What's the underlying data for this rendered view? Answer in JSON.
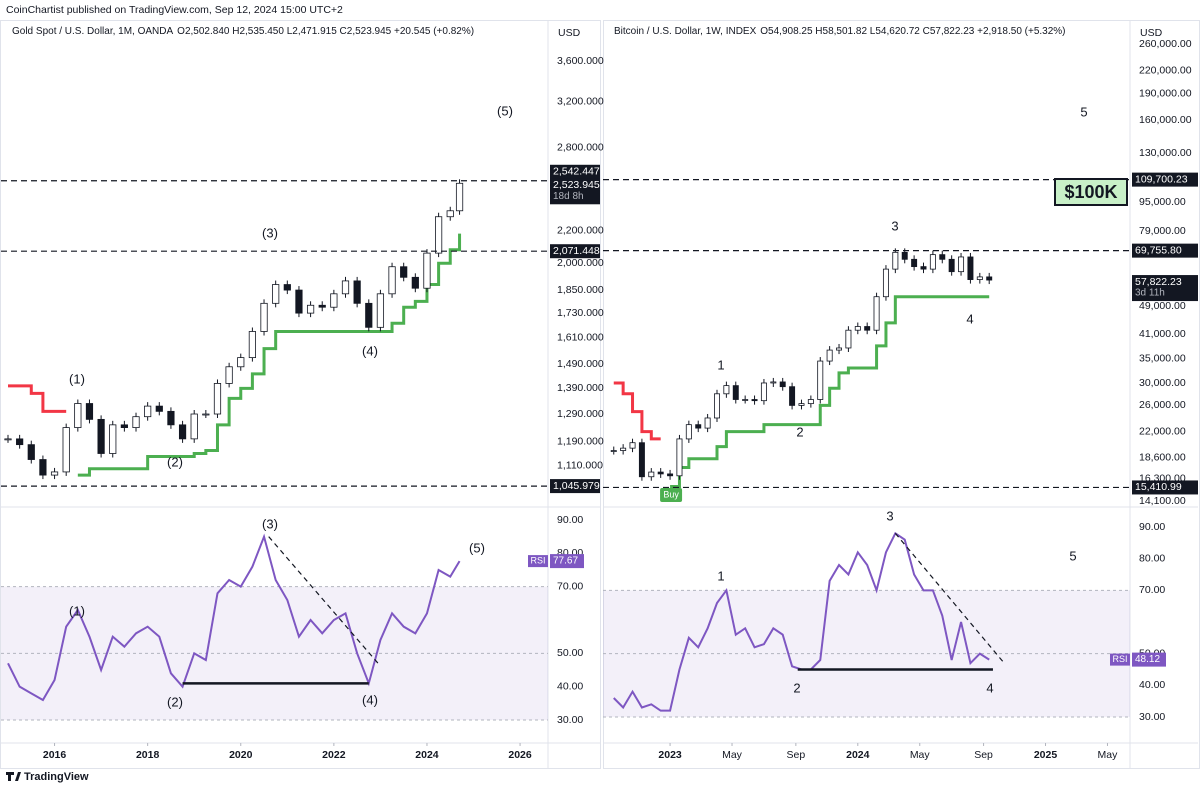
{
  "header": {
    "text": "CoinChartist published on TradingView.com, Sep 12, 2024 15:00 UTC+2"
  },
  "footer": {
    "brand": "TradingView"
  },
  "chart_data": [
    {
      "type": "candlestick",
      "title": "Gold Spot / U.S. Dollar, 1M, OANDA",
      "ohlc": "O2,502.840 H2,535.450 L2,471.915 C2,523.945 +20.545 (+0.82%)",
      "unit": "USD",
      "log": true,
      "color": "#131722",
      "x": [
        2015.0,
        2015.25,
        2015.5,
        2015.75,
        2016.0,
        2016.25,
        2016.5,
        2016.75,
        2017.0,
        2017.25,
        2017.5,
        2017.75,
        2018.0,
        2018.25,
        2018.5,
        2018.75,
        2019.0,
        2019.25,
        2019.5,
        2019.75,
        2020.0,
        2020.25,
        2020.5,
        2020.75,
        2021.0,
        2021.25,
        2021.5,
        2021.75,
        2022.0,
        2022.25,
        2022.5,
        2022.75,
        2023.0,
        2023.25,
        2023.5,
        2023.75,
        2024.0,
        2024.25,
        2024.5,
        2024.7
      ],
      "values": [
        1200,
        1180,
        1130,
        1080,
        1090,
        1240,
        1330,
        1270,
        1150,
        1250,
        1240,
        1280,
        1320,
        1300,
        1250,
        1200,
        1290,
        1290,
        1410,
        1480,
        1520,
        1640,
        1780,
        1880,
        1850,
        1730,
        1770,
        1760,
        1830,
        1900,
        1780,
        1660,
        1830,
        1980,
        1920,
        1860,
        2060,
        2290,
        2330,
        2523.945
      ],
      "supertrend": [
        {
          "color": "#f23645",
          "values": [
            1400,
            1400,
            1370,
            1300,
            1300,
            1300,
            null,
            null,
            null,
            null,
            null,
            null,
            null,
            null,
            null,
            null,
            null,
            null,
            null,
            null,
            null,
            null,
            null,
            null,
            null,
            null,
            null,
            null,
            null,
            null,
            null,
            null,
            null,
            null,
            null,
            null,
            null,
            null,
            null,
            null
          ]
        },
        {
          "color": "#4caf50",
          "values": [
            null,
            null,
            null,
            null,
            null,
            null,
            1080,
            1100,
            1100,
            1100,
            1100,
            1100,
            1140,
            1140,
            1140,
            1140,
            1150,
            1160,
            1250,
            1350,
            1390,
            1450,
            1560,
            1640,
            1640,
            1640,
            1640,
            1640,
            1640,
            1640,
            1640,
            1640,
            1640,
            1680,
            1760,
            1790,
            1880,
            2000,
            2080,
            2180
          ]
        }
      ],
      "xlim": [
        2015.0,
        2026.6
      ],
      "xticks": [
        2016,
        2018,
        2020,
        2022,
        2024,
        2026
      ],
      "ylim": [
        990,
        4000
      ],
      "yticks": [
        {
          "value": 3600,
          "label": "3,600.000"
        },
        {
          "value": 3200,
          "label": "3,200.000"
        },
        {
          "value": 2800,
          "label": "2,800.000"
        },
        {
          "value": 2200,
          "label": "2,200.000"
        },
        {
          "value": 2000,
          "label": "2,000.000"
        },
        {
          "value": 1850,
          "label": "1,850.000"
        },
        {
          "value": 1730,
          "label": "1,730.000"
        },
        {
          "value": 1610,
          "label": "1,610.000"
        },
        {
          "value": 1490,
          "label": "1,490.000"
        },
        {
          "value": 1390,
          "label": "1,390.000"
        },
        {
          "value": 1290,
          "label": "1,290.000"
        },
        {
          "value": 1190,
          "label": "1,190.000"
        },
        {
          "value": 1110,
          "label": "1,110.000"
        }
      ],
      "levels": [
        {
          "value": 2542.447,
          "label": "2,542.447"
        },
        {
          "value": 2071.448,
          "label": "2,071.448"
        },
        {
          "value": 1045.979,
          "label": "1,045.979"
        }
      ],
      "price_badge": {
        "value": 2523.945,
        "label": "2,523.945"
      },
      "countdown": "18d 8h",
      "waves": [
        "(1)",
        "(2)",
        "(3)",
        "(4)",
        "(5)"
      ],
      "rsi": {
        "name": "RSI",
        "color": "#7e57c2",
        "values": [
          47,
          40,
          38,
          36,
          42,
          58,
          63,
          55,
          45,
          55,
          52,
          56,
          58,
          55,
          44,
          40,
          50,
          48,
          68,
          72,
          70,
          76,
          85,
          72,
          66,
          55,
          60,
          56,
          60,
          62,
          50,
          41,
          54,
          62,
          58,
          56,
          62,
          75,
          73,
          77.67
        ],
        "ylim": [
          23.4,
          93.6
        ],
        "yticks": [
          {
            "value": 90,
            "label": "90.00"
          },
          {
            "value": 80,
            "label": "80.00"
          },
          {
            "value": 70,
            "label": "70.00"
          },
          {
            "value": 50,
            "label": "50.00"
          },
          {
            "value": 40,
            "label": "40.00"
          },
          {
            "value": 30,
            "label": "30.00"
          }
        ],
        "band": [
          30,
          70
        ],
        "levels": [
          70,
          50,
          30
        ],
        "waves": [
          "(1)",
          "(2)",
          "(3)",
          "(4)",
          "(5)"
        ],
        "trendlines": [
          {
            "style": "dashed",
            "x": [
              2020.6,
              2022.95
            ],
            "y": [
              85,
              47
            ]
          },
          {
            "style": "solid",
            "x": [
              2018.75,
              2022.75
            ],
            "y": [
              41,
              41
            ]
          }
        ]
      }
    },
    {
      "type": "candlestick",
      "title": "Bitcoin / U.S. Dollar, 1W, INDEX",
      "ohlc": "O54,908.25 H58,501.82 L54,620.72 C57,822.23 +2,918.50 (+5.32%)",
      "unit": "USD",
      "log": true,
      "color": "#131722",
      "x": [
        2022.7,
        2022.75,
        2022.8,
        2022.85,
        2022.9,
        2022.95,
        2023.0,
        2023.05,
        2023.1,
        2023.15,
        2023.2,
        2023.25,
        2023.3,
        2023.35,
        2023.4,
        2023.45,
        2023.5,
        2023.55,
        2023.6,
        2023.65,
        2023.7,
        2023.75,
        2023.8,
        2023.85,
        2023.9,
        2023.95,
        2024.0,
        2024.05,
        2024.1,
        2024.15,
        2024.2,
        2024.25,
        2024.3,
        2024.35,
        2024.4,
        2024.45,
        2024.5,
        2024.55,
        2024.6,
        2024.65,
        2024.7
      ],
      "values": [
        19500,
        19800,
        20500,
        16500,
        17000,
        16800,
        16600,
        21000,
        23000,
        22500,
        24000,
        28000,
        29500,
        27000,
        27000,
        26800,
        30000,
        30200,
        29300,
        26000,
        26300,
        27000,
        34500,
        37000,
        37500,
        42000,
        43000,
        42000,
        52000,
        62000,
        69000,
        66000,
        63000,
        62000,
        68000,
        66000,
        61000,
        67000,
        58000,
        59000,
        57822.23
      ],
      "supertrend": [
        {
          "color": "#f23645",
          "values": [
            30000,
            28000,
            25000,
            22000,
            21000,
            21000,
            null,
            null,
            null,
            null,
            null,
            null,
            null,
            null,
            null,
            null,
            null,
            null,
            null,
            null,
            null,
            null,
            null,
            null,
            null,
            null,
            null,
            null,
            null,
            null,
            null,
            null,
            null,
            null,
            null,
            null,
            null,
            null,
            null,
            null,
            null
          ]
        },
        {
          "color": "#4caf50",
          "values": [
            null,
            null,
            null,
            null,
            null,
            null,
            15500,
            17500,
            18500,
            18500,
            18500,
            20000,
            22000,
            22000,
            22000,
            22000,
            23000,
            23000,
            23000,
            23000,
            23000,
            23000,
            26000,
            29000,
            32000,
            33000,
            33000,
            33000,
            38000,
            44000,
            52000,
            52000,
            52000,
            52000,
            52000,
            52000,
            52000,
            52000,
            52000,
            52000,
            52000
          ]
        }
      ],
      "xlim": [
        2022.68,
        2025.45
      ],
      "xticks": [
        2023,
        {
          "value": 2023.33,
          "label": "May"
        },
        {
          "value": 2023.67,
          "label": "Sep"
        },
        2024,
        {
          "value": 2024.33,
          "label": "May"
        },
        {
          "value": 2024.67,
          "label": "Sep"
        },
        2025,
        {
          "value": 2025.33,
          "label": "May"
        }
      ],
      "ylim": [
        13780,
        294000
      ],
      "yticks": [
        {
          "value": 260000,
          "label": "260,000.00"
        },
        {
          "value": 220000,
          "label": "220,000.00"
        },
        {
          "value": 190000,
          "label": "190,000.00"
        },
        {
          "value": 160000,
          "label": "160,000.00"
        },
        {
          "value": 130000,
          "label": "130,000.00"
        },
        {
          "value": 95000,
          "label": "95,000.00"
        },
        {
          "value": 79000,
          "label": "79,000.00"
        },
        {
          "value": 49000,
          "label": "49,000.00"
        },
        {
          "value": 41000,
          "label": "41,000.00"
        },
        {
          "value": 35000,
          "label": "35,000.00"
        },
        {
          "value": 30000,
          "label": "30,000.00"
        },
        {
          "value": 26000,
          "label": "26,000.00"
        },
        {
          "value": 22000,
          "label": "22,000.00"
        },
        {
          "value": 18600,
          "label": "18,600.00"
        },
        {
          "value": 16300,
          "label": "16,300.00"
        },
        {
          "value": 14100,
          "label": "14,100.00"
        }
      ],
      "levels": [
        {
          "value": 109700.23,
          "label": "109,700.23"
        },
        {
          "value": 69755.8,
          "label": "69,755.80"
        },
        {
          "value": 15410.99,
          "label": "15,410.99"
        }
      ],
      "price_badge": {
        "value": 57822.23,
        "label": "57,822.23"
      },
      "countdown": "3d 11h",
      "waves": [
        "1",
        "2",
        "3",
        "4",
        "5"
      ],
      "note": "$100K",
      "buy": "Buy",
      "rsi": {
        "name": "RSI",
        "color": "#7e57c2",
        "values": [
          36,
          33,
          38,
          33,
          34,
          32,
          32,
          45,
          55,
          52,
          58,
          66,
          70,
          56,
          58,
          52,
          53,
          58,
          56,
          46,
          45,
          45,
          48,
          73,
          78,
          75,
          82,
          78,
          70,
          82,
          88,
          86,
          75,
          70,
          70,
          62,
          48,
          60,
          47,
          50,
          48.12
        ],
        "ylim": [
          22.1,
          96
        ],
        "yticks": [
          {
            "value": 90,
            "label": "90.00"
          },
          {
            "value": 80,
            "label": "80.00"
          },
          {
            "value": 70,
            "label": "70.00"
          },
          {
            "value": 50,
            "label": "50.00"
          },
          {
            "value": 40,
            "label": "40.00"
          },
          {
            "value": 30,
            "label": "30.00"
          }
        ],
        "band": [
          30,
          70
        ],
        "levels": [
          70,
          50,
          30
        ],
        "waves": [
          "1",
          "2",
          "3",
          "4",
          "5"
        ],
        "trendlines": [
          {
            "style": "dashed",
            "x": [
              2024.2,
              2024.78
            ],
            "y": [
              88,
              47
            ]
          },
          {
            "style": "solid",
            "x": [
              2023.68,
              2024.72
            ],
            "y": [
              45,
              45
            ]
          }
        ]
      }
    }
  ]
}
